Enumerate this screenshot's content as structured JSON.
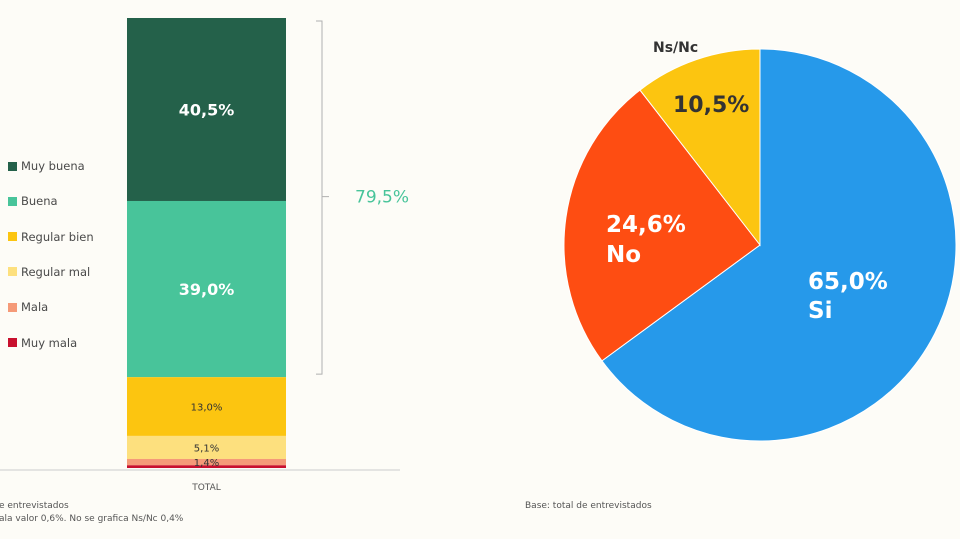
{
  "chart_data": [
    {
      "type": "bar",
      "stacked": true,
      "categories": [
        "TOTAL"
      ],
      "series": [
        {
          "name": "Muy buena",
          "value": 40.5,
          "label": "40,5%",
          "color": "#24614a"
        },
        {
          "name": "Buena",
          "value": 39.0,
          "label": "39,0%",
          "color": "#48c49a"
        },
        {
          "name": "Regular bien",
          "value": 13.0,
          "label": "13,0%",
          "color": "#fcc510"
        },
        {
          "name": "Regular mal",
          "value": 5.1,
          "label": "5,1%",
          "color": "#fde07e"
        },
        {
          "name": "Mala",
          "value": 1.4,
          "label": "1,4%",
          "color": "#f59a78"
        },
        {
          "name": "Muy mala",
          "value": 0.6,
          "label": "",
          "color": "#c8102e"
        }
      ],
      "bracket_label": "79,5%",
      "bracket_color": "#48c49a",
      "legend_position": "left",
      "footnote_lines": [
        "e entrevistados",
        "ala valor 0,6%. No se grafica Ns/Nc 0,4%"
      ]
    },
    {
      "type": "pie",
      "slices": [
        {
          "name": "Si",
          "value": 65.0,
          "label": "65,0%",
          "color": "#2699ea"
        },
        {
          "name": "No",
          "value": 24.6,
          "label": "24,6%",
          "color": "#fe4d12"
        },
        {
          "name": "Ns/Nc",
          "value": 10.5,
          "label": "10,5%",
          "color": "#fcc510"
        }
      ],
      "footnote": "Base: total de entrevistados"
    }
  ]
}
